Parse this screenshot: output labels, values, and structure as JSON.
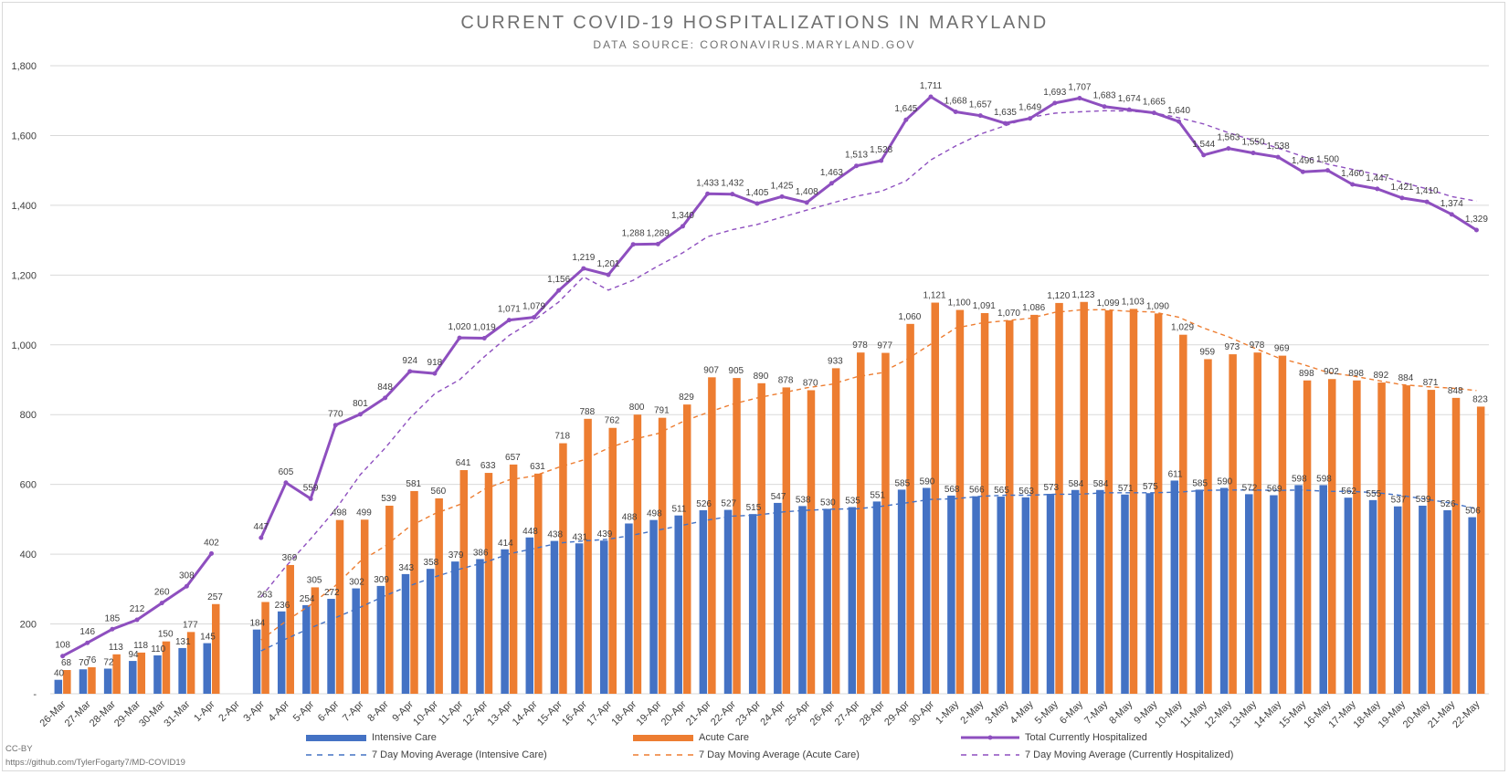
{
  "title": "CURRENT COVID-19 HOSPITALIZATIONS IN MARYLAND",
  "subtitle": "DATA SOURCE: CORONAVIRUS.MARYLAND.GOV",
  "credit_license": "CC-BY",
  "credit_url": "https://github.com/TylerFogarty7/MD-COVID19",
  "colors": {
    "icu": "#4472c4",
    "acute": "#ed7d31",
    "total": "#8e4fbf",
    "grid": "#d9d9d9",
    "text": "#404040"
  },
  "chart_data": {
    "type": "bar",
    "title": "CURRENT COVID-19 HOSPITALIZATIONS IN MARYLAND",
    "subtitle": "DATA SOURCE: CORONAVIRUS.MARYLAND.GOV",
    "ylim": [
      0,
      1800
    ],
    "y_ticks": [
      "-",
      "200",
      "400",
      "600",
      "800",
      "1,000",
      "1,200",
      "1,400",
      "1,600",
      "1,800"
    ],
    "grid": true,
    "legend_position": "bottom",
    "categories": [
      "26-Mar",
      "27-Mar",
      "28-Mar",
      "29-Mar",
      "30-Mar",
      "31-Mar",
      "1-Apr",
      "2-Apr",
      "3-Apr",
      "4-Apr",
      "5-Apr",
      "6-Apr",
      "7-Apr",
      "8-Apr",
      "9-Apr",
      "10-Apr",
      "11-Apr",
      "12-Apr",
      "13-Apr",
      "14-Apr",
      "15-Apr",
      "16-Apr",
      "17-Apr",
      "18-Apr",
      "19-Apr",
      "20-Apr",
      "21-Apr",
      "22-Apr",
      "23-Apr",
      "24-Apr",
      "25-Apr",
      "26-Apr",
      "27-Apr",
      "28-Apr",
      "29-Apr",
      "30-Apr",
      "1-May",
      "2-May",
      "3-May",
      "4-May",
      "5-May",
      "6-May",
      "7-May",
      "8-May",
      "9-May",
      "10-May",
      "11-May",
      "12-May",
      "13-May",
      "14-May",
      "15-May",
      "16-May",
      "17-May",
      "18-May",
      "19-May",
      "20-May",
      "21-May",
      "22-May"
    ],
    "series": [
      {
        "name": "Intensive Care",
        "kind": "bar",
        "values": [
          40,
          70,
          72,
          94,
          110,
          131,
          145,
          null,
          184,
          236,
          254,
          272,
          302,
          309,
          343,
          358,
          379,
          386,
          414,
          448,
          438,
          431,
          439,
          488,
          498,
          511,
          526,
          527,
          515,
          547,
          538,
          530,
          535,
          551,
          585,
          590,
          568,
          566,
          565,
          563,
          573,
          584,
          584,
          571,
          575,
          611,
          585,
          590,
          572,
          569,
          598,
          598,
          562,
          555,
          537,
          539,
          526,
          506
        ]
      },
      {
        "name": "Acute Care",
        "kind": "bar",
        "values": [
          68,
          76,
          113,
          118,
          150,
          177,
          257,
          null,
          263,
          369,
          305,
          498,
          499,
          539,
          581,
          560,
          641,
          633,
          657,
          631,
          718,
          788,
          762,
          800,
          791,
          829,
          907,
          905,
          890,
          878,
          870,
          933,
          978,
          977,
          1060,
          1121,
          1100,
          1091,
          1070,
          1086,
          1120,
          1123,
          1099,
          1103,
          1090,
          1029,
          959,
          973,
          978,
          969,
          898,
          902,
          898,
          892,
          884,
          871,
          848,
          823
        ]
      },
      {
        "name": "Total Currently Hospitalized",
        "kind": "line",
        "values": [
          108,
          146,
          185,
          212,
          260,
          308,
          402,
          null,
          447,
          605,
          559,
          770,
          801,
          848,
          924,
          918,
          1020,
          1019,
          1071,
          1079,
          1156,
          1219,
          1201,
          1288,
          1289,
          1340,
          1433,
          1432,
          1405,
          1425,
          1408,
          1463,
          1513,
          1528,
          1645,
          1711,
          1668,
          1657,
          1635,
          1649,
          1693,
          1707,
          1683,
          1674,
          1665,
          1640,
          1544,
          1563,
          1550,
          1538,
          1496,
          1500,
          1460,
          1447,
          1421,
          1410,
          1374,
          1329
        ]
      },
      {
        "name": "7 Day Moving Average (Intensive Care)",
        "kind": "dashed",
        "values": [
          null,
          null,
          null,
          null,
          null,
          null,
          96,
          null,
          123,
          157,
          189,
          218,
          248,
          281,
          310,
          335,
          357,
          376,
          401,
          416,
          432,
          438,
          443,
          455,
          469,
          483,
          498,
          509,
          512,
          521,
          526,
          529,
          530,
          537,
          547,
          557,
          559,
          566,
          569,
          569,
          572,
          572,
          576,
          576,
          576,
          578,
          583,
          584,
          584,
          583,
          584,
          580,
          580,
          576,
          568,
          557,
          546,
          530
        ]
      },
      {
        "name": "7 Day Moving Average (Acute Care)",
        "kind": "dashed",
        "values": [
          null,
          null,
          null,
          null,
          null,
          null,
          140,
          null,
          154,
          208,
          255,
          310,
          380,
          423,
          480,
          516,
          542,
          586,
          613,
          624,
          649,
          670,
          704,
          729,
          746,
          780,
          806,
          830,
          848,
          862,
          877,
          887,
          908,
          920,
          957,
          1002,
          1048,
          1062,
          1069,
          1076,
          1093,
          1100,
          1101,
          1096,
          1094,
          1079,
          1048,
          1023,
          992,
          963,
          944,
          921,
          911,
          898,
          886,
          880,
          876,
          869
        ]
      },
      {
        "name": "7 Day Moving Average (Currently Hospitalized)",
        "kind": "dashed",
        "values": [
          null,
          null,
          null,
          null,
          null,
          null,
          237,
          null,
          277,
          365,
          444,
          528,
          628,
          704,
          790,
          860,
          900,
          966,
          1027,
          1070,
          1123,
          1195,
          1157,
          1185,
          1226,
          1264,
          1310,
          1330,
          1345,
          1366,
          1386,
          1406,
          1426,
          1440,
          1470,
          1530,
          1570,
          1604,
          1628,
          1652,
          1664,
          1668,
          1671,
          1670,
          1665,
          1651,
          1633,
          1608,
          1586,
          1564,
          1540,
          1518,
          1503,
          1488,
          1466,
          1447,
          1425,
          1412
        ]
      }
    ],
    "point_labels": {
      "icu": [
        "40",
        "70",
        "72",
        "94",
        "110",
        "131",
        "145",
        "",
        "184",
        "236",
        "254",
        "272",
        "302",
        "309",
        "343",
        "358",
        "379",
        "386",
        "414",
        "448",
        "438",
        "431",
        "439",
        "488",
        "498",
        "511",
        "526",
        "527",
        "515",
        "547",
        "538",
        "530",
        "535",
        "551",
        "585",
        "590",
        "568",
        "566",
        "565",
        "563",
        "573",
        "584",
        "584",
        "571",
        "575",
        "611",
        "585",
        "590",
        "572",
        "569",
        "598",
        "598",
        "562",
        "555",
        "537",
        "539",
        "526",
        "506"
      ],
      "acute": [
        "68",
        "76",
        "113",
        "118",
        "150",
        "177",
        "257",
        "",
        "263",
        "369",
        "305",
        "498",
        "499",
        "539",
        "581",
        "560",
        "641",
        "633",
        "657",
        "631",
        "718",
        "788",
        "762",
        "800",
        "791",
        "829",
        "907",
        "905",
        "890",
        "878",
        "870",
        "933",
        "978",
        "977",
        "1,060",
        "1,121",
        "1,100",
        "1,091",
        "1,070",
        "1,086",
        "1,120",
        "1,123",
        "1,099",
        "1,103",
        "1,090",
        "1,029",
        "959",
        "973",
        "978",
        "969",
        "898",
        "902",
        "898",
        "892",
        "884",
        "871",
        "848",
        "823"
      ],
      "total": [
        "108",
        "146",
        "185",
        "212",
        "260",
        "308",
        "402",
        "",
        "447",
        "605",
        "559",
        "770",
        "801",
        "848",
        "924",
        "918",
        "1,020",
        "1,019",
        "1,071",
        "1,079",
        "1,156",
        "1,219",
        "1,201",
        "1,288",
        "1,289",
        "1,340",
        "1,433",
        "1,432",
        "1,405",
        "1,425",
        "1,408",
        "1,463",
        "1,513",
        "1,528",
        "1,645",
        "1,711",
        "1,668",
        "1,657",
        "1,635",
        "1,649",
        "1,693",
        "1,707",
        "1,683",
        "1,674",
        "1,665",
        "1,640",
        "1,544",
        "1,563",
        "1,550",
        "1,538",
        "1,496",
        "1,500",
        "1,460",
        "1,447",
        "1,421",
        "1,410",
        "1,374",
        "1,329"
      ]
    }
  }
}
